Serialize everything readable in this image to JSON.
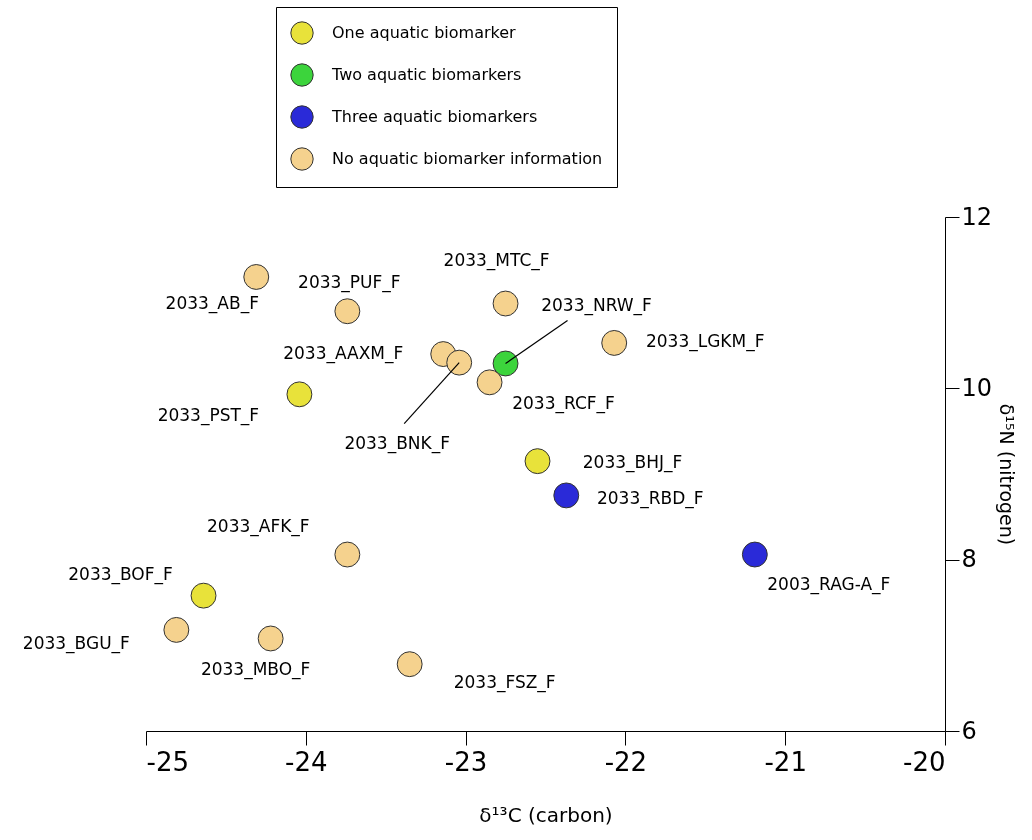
{
  "chart_data": {
    "type": "scatter",
    "xlabel": "δ¹³C (carbon)",
    "ylabel": "δ¹⁵N (nitrogen)",
    "xlim": [
      -25,
      -20
    ],
    "xticks": [
      -25,
      -24,
      -23,
      -22,
      -21,
      -20
    ],
    "ylim": [
      6,
      12
    ],
    "yticks": [
      6,
      8,
      10,
      12
    ],
    "grid": false,
    "legend": "top",
    "marker": "circle",
    "series": [
      {
        "name": "One aquatic biomarker",
        "color": "#e8e23a",
        "x": [
          -24.04,
          -22.55,
          -24.64
        ],
        "values": [
          9.93,
          9.15,
          7.58
        ]
      },
      {
        "name": "Two aquatic biomarkers",
        "color": "#3cd43c",
        "x": [
          -22.75
        ],
        "values": [
          10.29
        ]
      },
      {
        "name": "Three aquatic biomarkers",
        "color": "#2a2ad8",
        "x": [
          -22.37,
          -21.19
        ],
        "values": [
          8.75,
          8.06
        ]
      },
      {
        "name": "No aquatic biomarker information",
        "color": "#f5d28e",
        "x": [
          -24.31,
          -23.74,
          -22.75,
          -23.14,
          -23.04,
          -22.07,
          -22.85,
          -23.74,
          -24.81,
          -24.22,
          -23.35
        ],
        "values": [
          11.3,
          10.9,
          10.99,
          10.4,
          10.3,
          10.53,
          10.07,
          8.06,
          7.18,
          7.08,
          6.78
        ]
      }
    ],
    "annotations": [
      {
        "text": "2033_AB_F",
        "x": -24.31,
        "y": 11.3
      },
      {
        "text": "2033_PUF_F",
        "x": -23.74,
        "y": 10.9
      },
      {
        "text": "2033_MTC_F",
        "x": -22.75,
        "y": 10.99
      },
      {
        "text": "2033_NRW_F",
        "x": -22.75,
        "y": 10.29
      },
      {
        "text": "2033_AAXM_F",
        "x": -23.14,
        "y": 10.4
      },
      {
        "text": "2033_BNK_F",
        "x": -23.04,
        "y": 10.3
      },
      {
        "text": "2033_LGKM_F",
        "x": -22.07,
        "y": 10.53
      },
      {
        "text": "2033_PST_F",
        "x": -24.04,
        "y": 9.93
      },
      {
        "text": "2033_RCF_F",
        "x": -22.85,
        "y": 10.07
      },
      {
        "text": "2033_BHJ_F",
        "x": -22.55,
        "y": 9.15
      },
      {
        "text": "2033_RBD_F",
        "x": -22.37,
        "y": 8.75
      },
      {
        "text": "2003_RAG-A_F",
        "x": -21.19,
        "y": 8.06
      },
      {
        "text": "2033_AFK_F",
        "x": -23.74,
        "y": 8.06
      },
      {
        "text": "2033_BOF_F",
        "x": -24.64,
        "y": 7.58
      },
      {
        "text": "2033_BGU_F",
        "x": -24.81,
        "y": 7.18
      },
      {
        "text": "2033_MBO_F",
        "x": -24.22,
        "y": 7.08
      },
      {
        "text": "2033_FSZ_F",
        "x": -23.35,
        "y": 6.78
      }
    ]
  }
}
